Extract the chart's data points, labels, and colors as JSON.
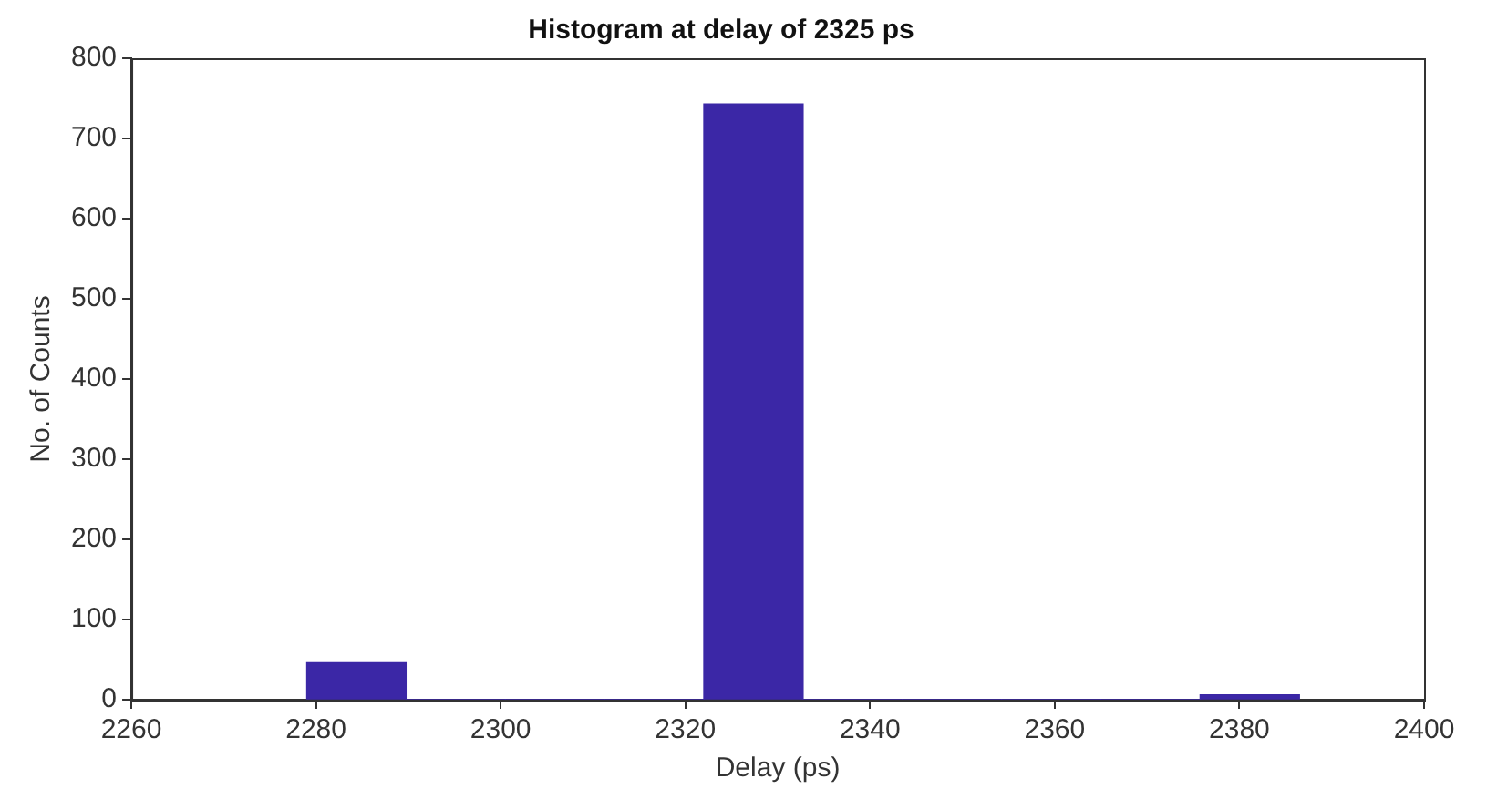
{
  "chart_data": {
    "type": "histogram",
    "title": "Histogram at delay of 2325 ps",
    "xlabel": "Delay (ps)",
    "ylabel": "No. of Counts",
    "bins": [
      2279,
      2289.75,
      2300.5,
      2311.25,
      2322,
      2332.75,
      2343.5,
      2354.25,
      2365,
      2375.75,
      2386.5
    ],
    "values": [
      46,
      0,
      0,
      0,
      743,
      0,
      0,
      0,
      0,
      6
    ],
    "color": "#3b27a6",
    "xlim": [
      2260,
      2400
    ],
    "xticks": [
      2260,
      2280,
      2300,
      2320,
      2340,
      2360,
      2380,
      2400
    ],
    "ylim": [
      0,
      800
    ],
    "yticks": [
      0,
      100,
      200,
      300,
      400,
      500,
      600,
      700,
      800
    ],
    "grid": false
  }
}
